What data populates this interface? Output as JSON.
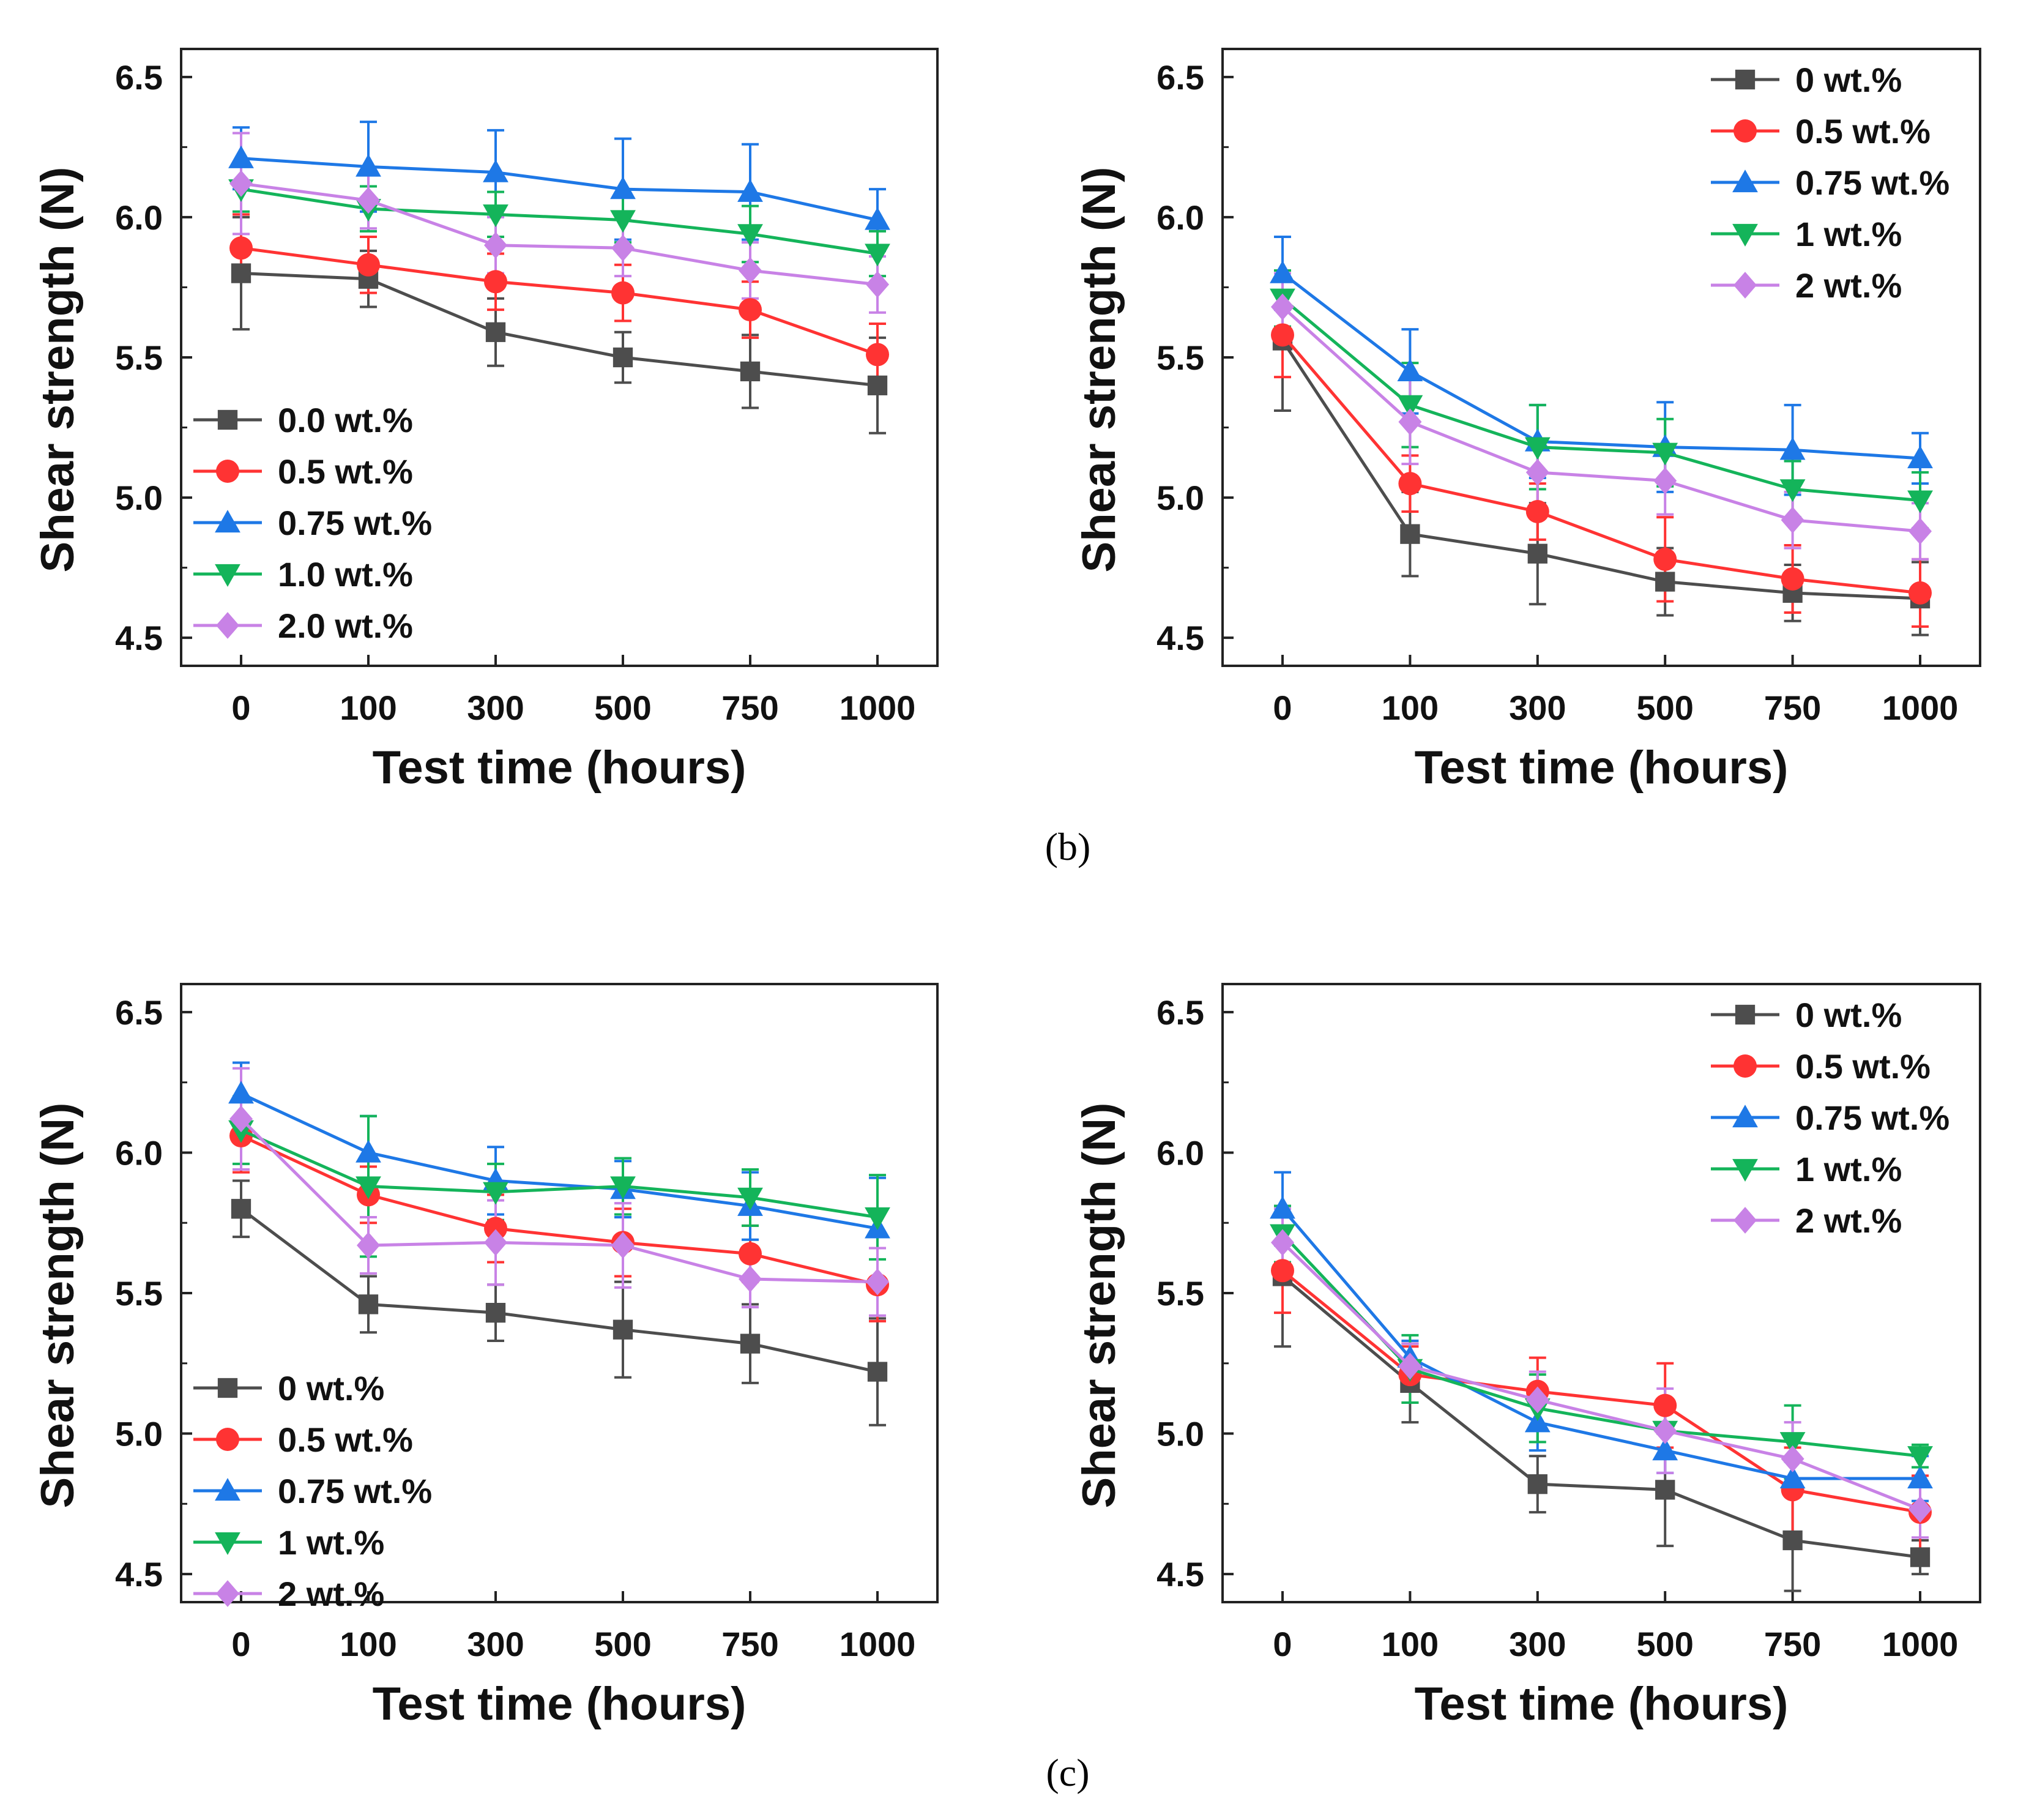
{
  "chart_data": [
    {
      "panel": "b-left",
      "type": "line",
      "xlabel": "Test time (hours)",
      "ylabel": "Shear strength (N)",
      "categories": [
        "0",
        "100",
        "300",
        "500",
        "750",
        "1000"
      ],
      "ylim": [
        4.4,
        6.6
      ],
      "yticks": [
        "4.5",
        "5.0",
        "5.5",
        "6.0",
        "6.5"
      ],
      "legend_position": "bottom-left",
      "series": [
        {
          "name": "0.0 wt.%",
          "color": "#4d4d4d",
          "marker": "square",
          "values": [
            5.8,
            5.78,
            5.59,
            5.5,
            5.45,
            5.4
          ],
          "errors": [
            0.2,
            0.1,
            0.12,
            0.09,
            0.13,
            0.17
          ]
        },
        {
          "name": "0.5 wt.%",
          "color": "#ff3333",
          "marker": "circle",
          "values": [
            5.89,
            5.83,
            5.77,
            5.73,
            5.67,
            5.51
          ],
          "errors": [
            0.12,
            0.1,
            0.1,
            0.1,
            0.1,
            0.11
          ]
        },
        {
          "name": "0.75 wt.%",
          "color": "#1e78e6",
          "marker": "triangle-up",
          "values": [
            6.21,
            6.18,
            6.16,
            6.1,
            6.09,
            5.99
          ],
          "errors": [
            0.11,
            0.16,
            0.15,
            0.18,
            0.17,
            0.11
          ]
        },
        {
          "name": "1.0 wt.%",
          "color": "#14b45a",
          "marker": "triangle-down",
          "values": [
            6.1,
            6.03,
            6.01,
            5.99,
            5.94,
            5.87
          ],
          "errors": [
            0.08,
            0.08,
            0.08,
            0.08,
            0.1,
            0.08
          ]
        },
        {
          "name": "2.0 wt.%",
          "color": "#c882e6",
          "marker": "diamond",
          "values": [
            6.12,
            6.06,
            5.9,
            5.89,
            5.81,
            5.76
          ],
          "errors": [
            0.18,
            0.1,
            0.1,
            0.1,
            0.1,
            0.1
          ]
        }
      ]
    },
    {
      "panel": "b-right",
      "type": "line",
      "xlabel": "Test time (hours)",
      "ylabel": "Shear strength (N)",
      "categories": [
        "0",
        "100",
        "300",
        "500",
        "750",
        "1000"
      ],
      "ylim": [
        4.4,
        6.6
      ],
      "yticks": [
        "4.5",
        "5.0",
        "5.5",
        "6.0",
        "6.5"
      ],
      "legend_position": "top-right",
      "series": [
        {
          "name": "0 wt.%",
          "color": "#4d4d4d",
          "marker": "square",
          "values": [
            5.56,
            4.87,
            4.8,
            4.7,
            4.66,
            4.64
          ],
          "errors": [
            0.25,
            0.15,
            0.18,
            0.12,
            0.1,
            0.13
          ]
        },
        {
          "name": "0.5 wt.%",
          "color": "#ff3333",
          "marker": "circle",
          "values": [
            5.58,
            5.05,
            4.95,
            4.78,
            4.71,
            4.66
          ],
          "errors": [
            0.15,
            0.1,
            0.1,
            0.15,
            0.12,
            0.12
          ]
        },
        {
          "name": "0.75 wt.%",
          "color": "#1e78e6",
          "marker": "triangle-up",
          "values": [
            5.8,
            5.45,
            5.2,
            5.18,
            5.17,
            5.14
          ],
          "errors": [
            0.13,
            0.15,
            0.13,
            0.16,
            0.16,
            0.09
          ]
        },
        {
          "name": "1 wt.%",
          "color": "#14b45a",
          "marker": "triangle-down",
          "values": [
            5.71,
            5.33,
            5.18,
            5.16,
            5.03,
            4.99
          ],
          "errors": [
            0.1,
            0.15,
            0.15,
            0.12,
            0.1,
            0.1
          ]
        },
        {
          "name": "2 wt.%",
          "color": "#c882e6",
          "marker": "diamond",
          "values": [
            5.68,
            5.27,
            5.09,
            5.06,
            4.92,
            4.88
          ],
          "errors": [
            0.12,
            0.15,
            0.12,
            0.12,
            0.1,
            0.1
          ]
        }
      ]
    },
    {
      "panel": "c-left",
      "type": "line",
      "xlabel": "Test time (hours)",
      "ylabel": "Shear strength (N)",
      "categories": [
        "0",
        "100",
        "300",
        "500",
        "750",
        "1000"
      ],
      "ylim": [
        4.4,
        6.6
      ],
      "yticks": [
        "4.5",
        "5.0",
        "5.5",
        "6.0",
        "6.5"
      ],
      "legend_position": "bottom-left",
      "series": [
        {
          "name": "0 wt.%",
          "color": "#4d4d4d",
          "marker": "square",
          "values": [
            5.8,
            5.46,
            5.43,
            5.37,
            5.32,
            5.22
          ],
          "errors": [
            0.1,
            0.1,
            0.1,
            0.17,
            0.14,
            0.19
          ]
        },
        {
          "name": "0.5 wt.%",
          "color": "#ff3333",
          "marker": "circle",
          "values": [
            6.06,
            5.85,
            5.73,
            5.68,
            5.64,
            5.53
          ],
          "errors": [
            0.13,
            0.1,
            0.12,
            0.12,
            0.1,
            0.13
          ]
        },
        {
          "name": "0.75 wt.%",
          "color": "#1e78e6",
          "marker": "triangle-up",
          "values": [
            6.21,
            6.0,
            5.9,
            5.87,
            5.81,
            5.73
          ],
          "errors": [
            0.11,
            0.13,
            0.12,
            0.1,
            0.12,
            0.18
          ]
        },
        {
          "name": "1 wt.%",
          "color": "#14b45a",
          "marker": "triangle-down",
          "values": [
            6.08,
            5.88,
            5.86,
            5.88,
            5.84,
            5.77
          ],
          "errors": [
            0.12,
            0.25,
            0.1,
            0.1,
            0.1,
            0.15
          ]
        },
        {
          "name": "2 wt.%",
          "color": "#c882e6",
          "marker": "diamond",
          "values": [
            6.12,
            5.67,
            5.68,
            5.67,
            5.55,
            5.54
          ],
          "errors": [
            0.18,
            0.1,
            0.15,
            0.15,
            0.1,
            0.12
          ]
        }
      ]
    },
    {
      "panel": "c-right",
      "type": "line",
      "xlabel": "Test time (hours)",
      "ylabel": "Shear strength (N)",
      "categories": [
        "0",
        "100",
        "300",
        "500",
        "750",
        "1000"
      ],
      "ylim": [
        4.4,
        6.6
      ],
      "yticks": [
        "4.5",
        "5.0",
        "5.5",
        "6.0",
        "6.5"
      ],
      "legend_position": "top-right",
      "series": [
        {
          "name": "0 wt.%",
          "color": "#4d4d4d",
          "marker": "square",
          "values": [
            5.56,
            5.18,
            4.82,
            4.8,
            4.62,
            4.56
          ],
          "errors": [
            0.25,
            0.14,
            0.1,
            0.2,
            0.18,
            0.06
          ]
        },
        {
          "name": "0.5 wt.%",
          "color": "#ff3333",
          "marker": "circle",
          "values": [
            5.58,
            5.21,
            5.15,
            5.1,
            4.8,
            4.72
          ],
          "errors": [
            0.15,
            0.1,
            0.12,
            0.15,
            0.15,
            0.13
          ]
        },
        {
          "name": "0.75 wt.%",
          "color": "#1e78e6",
          "marker": "triangle-up",
          "values": [
            5.8,
            5.27,
            5.04,
            4.94,
            4.84,
            4.84
          ],
          "errors": [
            0.13,
            0.06,
            0.1,
            0.08,
            0.06,
            0.08
          ]
        },
        {
          "name": "1 wt.%",
          "color": "#14b45a",
          "marker": "triangle-down",
          "values": [
            5.71,
            5.23,
            5.09,
            5.01,
            4.97,
            4.92
          ],
          "errors": [
            0.1,
            0.12,
            0.12,
            0.1,
            0.13,
            0.04
          ]
        },
        {
          "name": "2 wt.%",
          "color": "#c882e6",
          "marker": "diamond",
          "values": [
            5.68,
            5.24,
            5.12,
            5.01,
            4.91,
            4.73
          ],
          "errors": [
            0.12,
            0.08,
            0.1,
            0.15,
            0.13,
            0.1
          ]
        }
      ]
    }
  ],
  "captions": {
    "b": "(b)",
    "c": "(c)"
  }
}
